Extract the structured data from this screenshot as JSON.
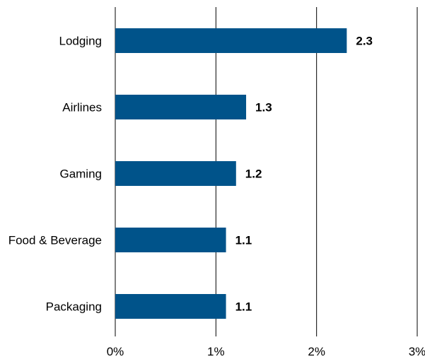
{
  "chart_data": {
    "type": "bar",
    "orientation": "horizontal",
    "categories": [
      "Lodging",
      "Airlines",
      "Gaming",
      "Food & Beverage",
      "Packaging"
    ],
    "values": [
      2.3,
      1.3,
      1.2,
      1.1,
      1.1
    ],
    "value_labels": [
      "2.3",
      "1.3",
      "1.2",
      "1.1",
      "1.1"
    ],
    "x_ticks": [
      "0%",
      "1%",
      "2%",
      "3%"
    ],
    "xlim": [
      0,
      3
    ],
    "grid": true,
    "legend": "none",
    "title": "",
    "xlabel": "",
    "ylabel": "",
    "bar_color": "#00538a"
  }
}
